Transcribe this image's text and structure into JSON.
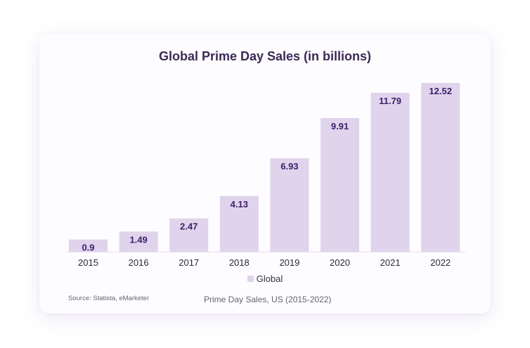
{
  "chart_data": {
    "type": "bar",
    "title": "Global Prime Day Sales (in billions)",
    "subtitle": "Prime Day Sales, US (2015-2022)",
    "source": "Source: Statista, eMarketer",
    "categories": [
      "2015",
      "2016",
      "2017",
      "2018",
      "2019",
      "2020",
      "2021",
      "2022"
    ],
    "series": [
      {
        "name": "Global",
        "values": [
          0.9,
          1.49,
          2.47,
          4.13,
          6.93,
          9.91,
          11.79,
          12.52
        ],
        "labels": [
          "0.9",
          "1.49",
          "2.47",
          "4.13",
          "6.93",
          "9.91",
          "11.79",
          "12.52"
        ]
      }
    ],
    "ylim": [
      0,
      12.52
    ],
    "grid": false,
    "legend_position": "bottom-center",
    "colors": {
      "bar": "#e0d3ec",
      "bar_label": "#3d1f6b",
      "tick_label": "#2f2838",
      "baseline": "#e8ddf0"
    }
  }
}
